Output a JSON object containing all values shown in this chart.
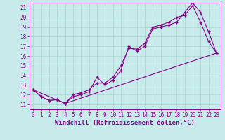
{
  "background_color": "#c8eaea",
  "grid_color": "#a8d4d4",
  "line_color": "#880088",
  "xlabel": "Windchill (Refroidissement éolien,°C)",
  "ylabel_ticks": [
    11,
    12,
    13,
    14,
    15,
    16,
    17,
    18,
    19,
    20,
    21
  ],
  "xtick_labels": [
    "0",
    "1",
    "2",
    "3",
    "4",
    "5",
    "6",
    "7",
    "8",
    "9",
    "10",
    "11",
    "12",
    "13",
    "14",
    "15",
    "16",
    "17",
    "18",
    "19",
    "20",
    "21",
    "22",
    "23"
  ],
  "xlim": [
    -0.5,
    23.5
  ],
  "ylim": [
    10.5,
    21.5
  ],
  "series1_x": [
    0,
    1,
    2,
    3,
    4,
    5,
    6,
    7,
    8,
    9,
    10,
    11,
    12,
    13,
    14,
    15,
    16,
    17,
    18,
    19,
    20,
    21,
    22,
    23
  ],
  "series1_y": [
    12.5,
    11.8,
    11.4,
    11.5,
    11.1,
    11.8,
    12.0,
    12.3,
    13.8,
    13.0,
    13.5,
    14.5,
    17.0,
    16.5,
    17.0,
    18.8,
    19.0,
    19.2,
    19.5,
    20.5,
    21.5,
    20.5,
    18.5,
    16.3
  ],
  "series2_x": [
    0,
    1,
    2,
    3,
    4,
    5,
    6,
    7,
    8,
    9,
    10,
    11,
    12,
    13,
    14,
    15,
    16,
    17,
    18,
    19,
    20,
    21,
    22,
    23
  ],
  "series2_y": [
    12.5,
    11.8,
    11.4,
    11.5,
    11.1,
    12.0,
    12.2,
    12.5,
    13.2,
    13.2,
    13.8,
    15.0,
    16.8,
    16.7,
    17.3,
    19.0,
    19.2,
    19.5,
    20.0,
    20.2,
    21.2,
    19.5,
    17.5,
    16.3
  ],
  "series3_x": [
    0,
    4,
    23
  ],
  "series3_y": [
    12.5,
    11.1,
    16.3
  ],
  "tick_fontsize": 5.5,
  "xlabel_fontsize": 6.5
}
